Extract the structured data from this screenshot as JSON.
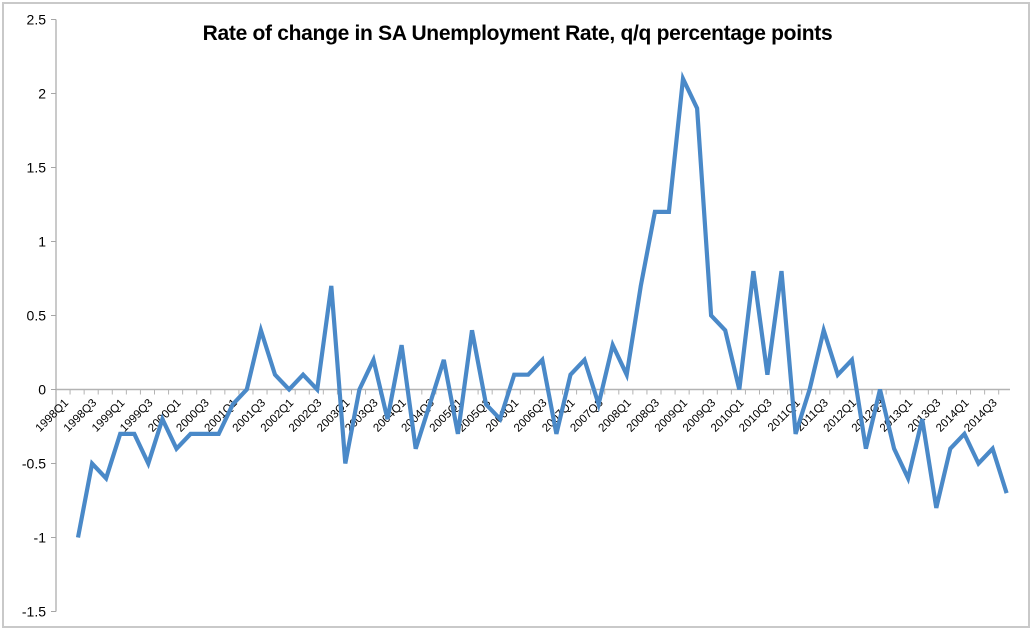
{
  "chart_data": {
    "type": "line",
    "title": "Rate of change in SA Unemployment Rate, q/q percentage points",
    "xlabel": "",
    "ylabel": "",
    "ylim": [
      -1.5,
      2.5
    ],
    "yticks": [
      2.5,
      2,
      1.5,
      1,
      0.5,
      0,
      -0.5,
      -1,
      -1.5
    ],
    "ytick_labels": [
      "2.5",
      "2",
      "1.5",
      "1",
      "0.5",
      "0",
      "-0.5",
      "-1",
      "-1.5"
    ],
    "grid": false,
    "legend": null,
    "line_color": "#4a89c8",
    "x_labels_shown": [
      "1998Q1",
      "1998Q3",
      "1999Q1",
      "1999Q3",
      "2000Q1",
      "2000Q3",
      "2001Q1",
      "2001Q3",
      "2002Q1",
      "2002Q3",
      "2003Q1",
      "2003Q3",
      "2004Q1",
      "2004Q3",
      "2005Q1",
      "2005Q3",
      "2006Q1",
      "2006Q3",
      "2007Q1",
      "2007Q3",
      "2008Q1",
      "2008Q3",
      "2009Q1",
      "2009Q3",
      "2010Q1",
      "2010Q3",
      "2011Q1",
      "2011Q3",
      "2012Q1",
      "2012Q3",
      "2013Q1",
      "2013Q3",
      "2014Q1",
      "2014Q3"
    ],
    "categories": [
      "1998Q1",
      "1998Q2",
      "1998Q3",
      "1998Q4",
      "1999Q1",
      "1999Q2",
      "1999Q3",
      "1999Q4",
      "2000Q1",
      "2000Q2",
      "2000Q3",
      "2000Q4",
      "2001Q1",
      "2001Q2",
      "2001Q3",
      "2001Q4",
      "2002Q1",
      "2002Q2",
      "2002Q3",
      "2002Q4",
      "2003Q1",
      "2003Q2",
      "2003Q3",
      "2003Q4",
      "2004Q1",
      "2004Q2",
      "2004Q3",
      "2004Q4",
      "2005Q1",
      "2005Q2",
      "2005Q3",
      "2005Q4",
      "2006Q1",
      "2006Q2",
      "2006Q3",
      "2006Q4",
      "2007Q1",
      "2007Q2",
      "2007Q3",
      "2007Q4",
      "2008Q1",
      "2008Q2",
      "2008Q3",
      "2008Q4",
      "2009Q1",
      "2009Q2",
      "2009Q3",
      "2009Q4",
      "2010Q1",
      "2010Q2",
      "2010Q3",
      "2010Q4",
      "2011Q1",
      "2011Q2",
      "2011Q3",
      "2011Q4",
      "2012Q1",
      "2012Q2",
      "2012Q3",
      "2012Q4",
      "2013Q1",
      "2013Q2",
      "2013Q3",
      "2013Q4",
      "2014Q1",
      "2014Q2",
      "2014Q3"
    ],
    "series": [
      {
        "name": "Rate of change in SA Unemployment Rate",
        "values": [
          -1.0,
          -0.5,
          -0.6,
          -0.3,
          -0.3,
          -0.5,
          -0.2,
          -0.4,
          -0.3,
          -0.3,
          -0.3,
          -0.1,
          0.0,
          0.4,
          0.1,
          0.0,
          0.1,
          0.0,
          0.7,
          -0.5,
          0.0,
          0.2,
          -0.2,
          0.3,
          -0.4,
          -0.1,
          0.2,
          -0.3,
          0.4,
          -0.1,
          -0.2,
          0.1,
          0.1,
          0.2,
          -0.3,
          0.1,
          0.2,
          -0.1,
          0.3,
          0.1,
          0.7,
          1.2,
          1.2,
          2.1,
          1.9,
          0.5,
          0.4,
          0.0,
          0.8,
          0.1,
          0.8,
          -0.3,
          0.0,
          0.4,
          0.1,
          0.2,
          -0.4,
          0.0,
          -0.4,
          -0.6,
          -0.2,
          -0.8,
          -0.4,
          -0.3,
          -0.5,
          -0.4,
          -0.7
        ]
      }
    ]
  }
}
